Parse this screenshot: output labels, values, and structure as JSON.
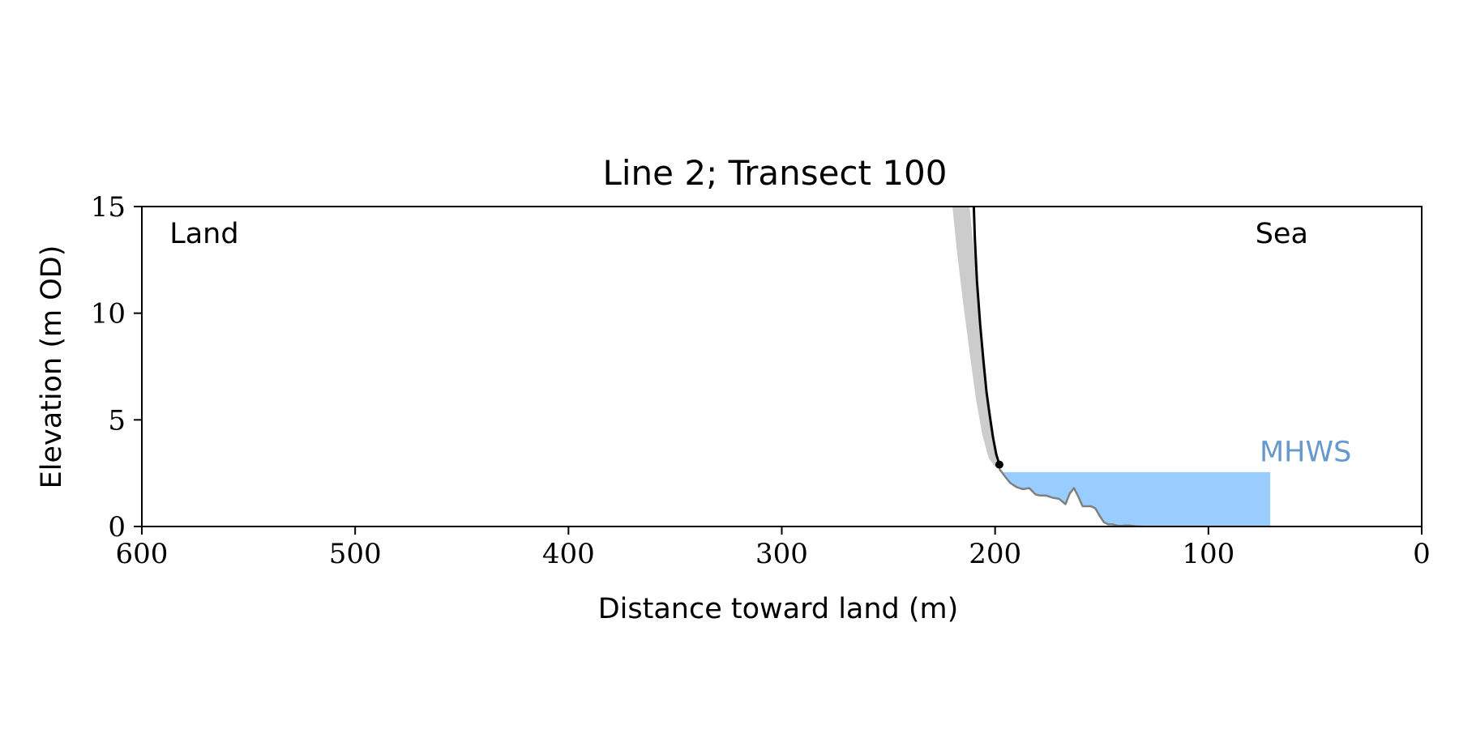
{
  "chart_data": {
    "type": "line",
    "title": "Line 2; Transect 100",
    "xlabel": "Distance toward land (m)",
    "ylabel": "Elevation (m OD)",
    "xlim": [
      600,
      0
    ],
    "ylim": [
      0,
      15
    ],
    "x_reversed": true,
    "x_ticks": [
      600,
      500,
      400,
      300,
      200,
      100,
      0
    ],
    "y_ticks": [
      0,
      5,
      10,
      15
    ],
    "grid": false,
    "annotations": [
      {
        "text": "Land",
        "x": 587,
        "y": 13.3,
        "color": "#000000"
      },
      {
        "text": "Sea",
        "x": 78,
        "y": 13.3,
        "color": "#000000"
      },
      {
        "text": "MHWS",
        "x": 76,
        "y": 3.05,
        "color": "#6699cc"
      }
    ],
    "mhws": {
      "elevation": 2.55,
      "x_from": 197,
      "x_to": 71,
      "fill_color": "#99ccff",
      "label": "MHWS"
    },
    "series": [
      {
        "role": "cliff",
        "color": "#000000",
        "x": [
          210,
          209.5,
          208.5,
          207,
          205.5,
          204,
          202.5,
          201,
          199.5,
          198
        ],
        "y": [
          15,
          13.5,
          11.5,
          9.5,
          7.8,
          6.3,
          5.2,
          4.2,
          3.4,
          2.9
        ]
      },
      {
        "role": "foreshore",
        "color": "#808080",
        "x": [
          198,
          195,
          193,
          190,
          187,
          184,
          181,
          179,
          176,
          173,
          170,
          167,
          165,
          163,
          162,
          161,
          159,
          158,
          157,
          155,
          153,
          151,
          149,
          147,
          145,
          143,
          141,
          139,
          137,
          135,
          133,
          131
        ],
        "y": [
          2.7,
          2.3,
          2.05,
          1.85,
          1.75,
          1.8,
          1.5,
          1.45,
          1.45,
          1.35,
          1.3,
          1.05,
          1.55,
          1.8,
          1.6,
          1.4,
          0.95,
          0.95,
          0.95,
          0.95,
          0.85,
          0.5,
          0.2,
          0.1,
          0.1,
          0.05,
          0.03,
          0.05,
          0.05,
          0.02,
          0.0,
          0.0
        ]
      }
    ],
    "uncertainty_band": {
      "color": "#cccccc",
      "upper": {
        "x": [
          220,
          218,
          215,
          212,
          209,
          206,
          203,
          200
        ],
        "y": [
          15,
          13,
          10.5,
          8.2,
          6.0,
          4.3,
          3.2,
          2.8
        ]
      },
      "lower": {
        "x": [
          212,
          209,
          207,
          205,
          203,
          201,
          199
        ],
        "y": [
          15,
          12,
          9.5,
          7.2,
          5.3,
          3.9,
          2.9
        ]
      }
    },
    "cliff_toe": {
      "x": 198,
      "y": 2.9,
      "color": "#000000"
    }
  }
}
